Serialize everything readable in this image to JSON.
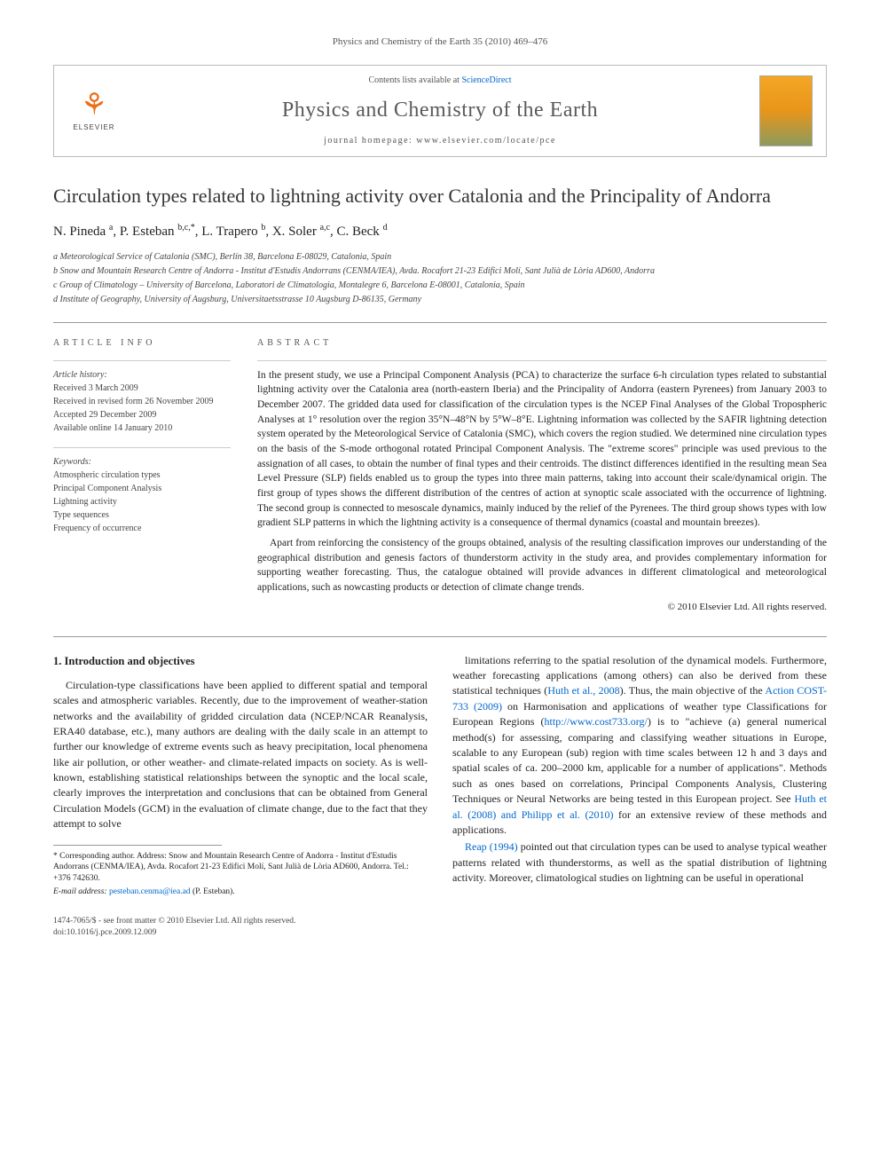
{
  "running_head": "Physics and Chemistry of the Earth 35 (2010) 469–476",
  "masthead": {
    "contents_prefix": "Contents lists available at ",
    "contents_link": "ScienceDirect",
    "journal_name": "Physics and Chemistry of the Earth",
    "homepage_prefix": "journal homepage: ",
    "homepage_url": "www.elsevier.com/locate/pce",
    "publisher_name": "ELSEVIER"
  },
  "title": "Circulation types related to lightning activity over Catalonia and the Principality of Andorra",
  "authors_html": "N. Pineda <sup>a</sup>, P. Esteban <sup>b,c,*</sup>, L. Trapero <sup>b</sup>, X. Soler <sup>a,c</sup>, C. Beck <sup>d</sup>",
  "affiliations": {
    "a": "a Meteorological Service of Catalonia (SMC), Berlín 38, Barcelona E-08029, Catalonia, Spain",
    "b": "b Snow and Mountain Research Centre of Andorra - Institut d'Estudis Andorrans (CENMA/IEA), Avda. Rocafort 21-23 Edifici Molí, Sant Julià de Lòria AD600, Andorra",
    "c": "c Group of Climatology – University of Barcelona, Laboratori de Climatologia, Montalegre 6, Barcelona E-08001, Catalonia, Spain",
    "d": "d Institute of Geography, University of Augsburg, Universitaetsstrasse 10 Augsburg D-86135, Germany"
  },
  "article_info": {
    "head": "ARTICLE INFO",
    "history_label": "Article history:",
    "history": {
      "received": "Received 3 March 2009",
      "revised": "Received in revised form 26 November 2009",
      "accepted": "Accepted 29 December 2009",
      "online": "Available online 14 January 2010"
    },
    "keywords_label": "Keywords:",
    "keywords": [
      "Atmospheric circulation types",
      "Principal Component Analysis",
      "Lightning activity",
      "Type sequences",
      "Frequency of occurrence"
    ]
  },
  "abstract": {
    "head": "ABSTRACT",
    "p1": "In the present study, we use a Principal Component Analysis (PCA) to characterize the surface 6-h circulation types related to substantial lightning activity over the Catalonia area (north-eastern Iberia) and the Principality of Andorra (eastern Pyrenees) from January 2003 to December 2007. The gridded data used for classification of the circulation types is the NCEP Final Analyses of the Global Tropospheric Analyses at 1° resolution over the region 35°N–48°N by 5°W–8°E. Lightning information was collected by the SAFIR lightning detection system operated by the Meteorological Service of Catalonia (SMC), which covers the region studied. We determined nine circulation types on the basis of the S-mode orthogonal rotated Principal Component Analysis. The \"extreme scores\" principle was used previous to the assignation of all cases, to obtain the number of final types and their centroids. The distinct differences identified in the resulting mean Sea Level Pressure (SLP) fields enabled us to group the types into three main patterns, taking into account their scale/dynamical origin. The first group of types shows the different distribution of the centres of action at synoptic scale associated with the occurrence of lightning. The second group is connected to mesoscale dynamics, mainly induced by the relief of the Pyrenees. The third group shows types with low gradient SLP patterns in which the lightning activity is a consequence of thermal dynamics (coastal and mountain breezes).",
    "p2": "Apart from reinforcing the consistency of the groups obtained, analysis of the resulting classification improves our understanding of the geographical distribution and genesis factors of thunderstorm activity in the study area, and provides complementary information for supporting weather forecasting. Thus, the catalogue obtained will provide advances in different climatological and meteorological applications, such as nowcasting products or detection of climate change trends.",
    "copyright": "© 2010 Elsevier Ltd. All rights reserved."
  },
  "section1": {
    "head": "1. Introduction and objectives",
    "p1": "Circulation-type classifications have been applied to different spatial and temporal scales and atmospheric variables. Recently, due to the improvement of weather-station networks and the availability of gridded circulation data (NCEP/NCAR Reanalysis, ERA40 database, etc.), many authors are dealing with the daily scale in an attempt to further our knowledge of extreme events such as heavy precipitation, local phenomena like air pollution, or other weather- and climate-related impacts on society. As is well-known, establishing statistical relationships between the synoptic and the local scale, clearly improves the interpretation and conclusions that can be obtained from General Circulation Models (GCM) in the evaluation of climate change, due to the fact that they attempt to solve",
    "p2_pre": "limitations referring to the spatial resolution of the dynamical models. Furthermore, weather forecasting applications (among others) can also be derived from these statistical techniques (",
    "p2_link1": "Huth et al., 2008",
    "p2_mid1": "). Thus, the main objective of the ",
    "p2_link2": "Action COST-733 (2009)",
    "p2_mid2": " on Harmonisation and applications of weather type Classifications for European Regions (",
    "p2_link3": "http://www.cost733.org/",
    "p2_mid3": ") is to \"achieve (a) general numerical method(s) for assessing, comparing and classifying weather situations in Europe, scalable to any European (sub) region with time scales between 12 h and 3 days and spatial scales of ca. 200–2000 km, applicable for a number of applications\". Methods such as ones based on correlations, Principal Components Analysis, Clustering Techniques or Neural Networks are being tested in this European project. See ",
    "p2_link4": "Huth et al. (2008) and Philipp et al. (2010)",
    "p2_post": " for an extensive review of these methods and applications.",
    "p3_link": "Reap (1994)",
    "p3_post": " pointed out that circulation types can be used to analyse typical weather patterns related with thunderstorms, as well as the spatial distribution of lightning activity. Moreover, climatological studies on lightning can be useful in operational"
  },
  "corresponding": {
    "star": "* Corresponding author. Address: Snow and Mountain Research Centre of Andorra - Institut d'Estudis Andorrans (CENMA/IEA), Avda. Rocafort 21-23 Edifici Molí, Sant Julià de Lòria AD600, Andorra. Tel.: +376 742630.",
    "email_label": "E-mail address: ",
    "email": "pesteban.cenma@iea.ad",
    "email_suffix": " (P. Esteban)."
  },
  "footer": {
    "issn": "1474-7065/$ - see front matter © 2010 Elsevier Ltd. All rights reserved.",
    "doi": "doi:10.1016/j.pce.2009.12.009"
  },
  "colors": {
    "link": "#0066cc",
    "elsevier_orange": "#e9711c",
    "text": "#222222",
    "muted": "#555555",
    "rule": "#999999"
  }
}
